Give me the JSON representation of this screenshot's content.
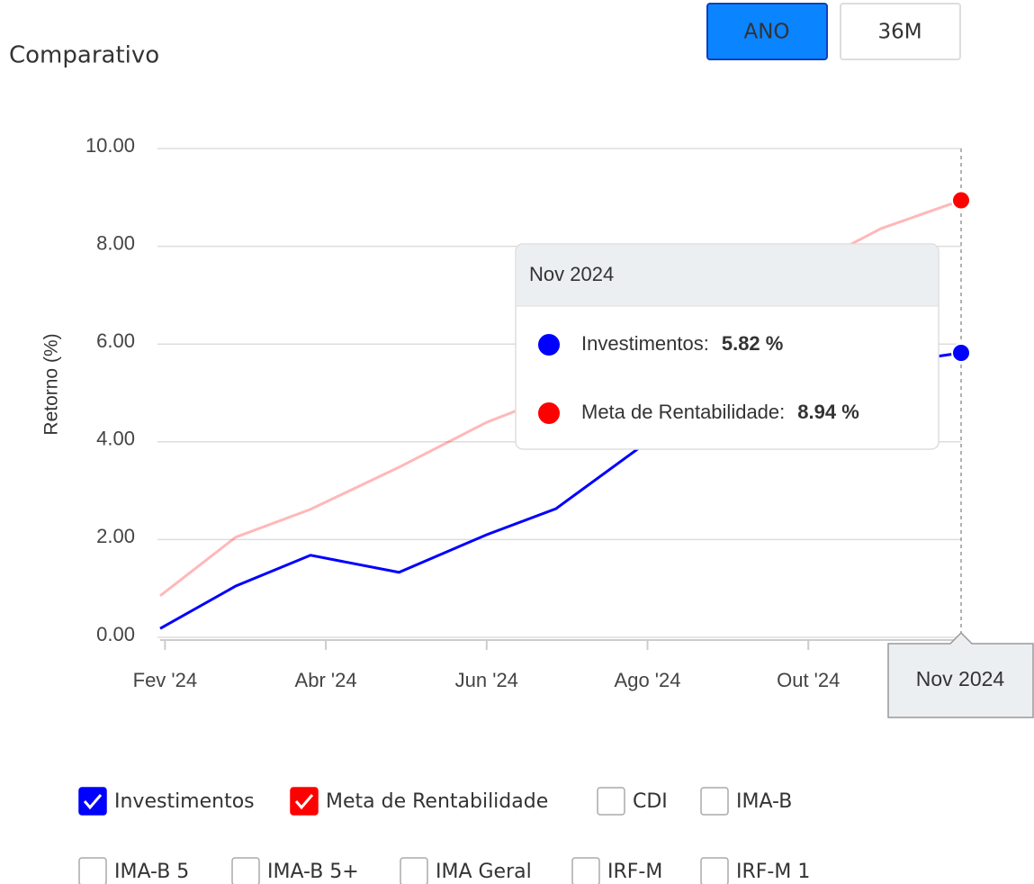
{
  "header": {
    "title": "Comparativo"
  },
  "buttons": [
    {
      "label": "ANO",
      "active": true
    },
    {
      "label": "36M",
      "active": false
    }
  ],
  "chart_data": {
    "type": "line",
    "y_label": "Retorno (%)",
    "x": [
      0.94,
      1.88,
      2.81,
      3.91,
      5.0,
      5.86,
      7.0,
      7.9,
      8.9,
      9.9,
      10.9
    ],
    "xlim": [
      0.94,
      10.9
    ],
    "xticks": [
      {
        "value": 1,
        "label": "Fev '24"
      },
      {
        "value": 3,
        "label": "Abr '24"
      },
      {
        "value": 5,
        "label": "Jun '24"
      },
      {
        "value": 7,
        "label": "Ago '24"
      },
      {
        "value": 9,
        "label": "Out '24"
      }
    ],
    "ylim": [
      0,
      10
    ],
    "yticks": [
      {
        "value": 0,
        "label": "0.00"
      },
      {
        "value": 2,
        "label": "2.00"
      },
      {
        "value": 4,
        "label": "4.00"
      },
      {
        "value": 6,
        "label": "6.00"
      },
      {
        "value": 8,
        "label": "8.00"
      },
      {
        "value": 10,
        "label": "10.00"
      }
    ],
    "grid": true,
    "series": [
      {
        "name": "Investimentos",
        "color": "#0000ff",
        "values": [
          0.18,
          1.05,
          1.68,
          1.33,
          2.1,
          2.63,
          4.0,
          5.34,
          5.45,
          5.58,
          5.82
        ]
      },
      {
        "name": "Meta de Rentabilidade",
        "color": "#ff0000",
        "values": [
          0.85,
          2.05,
          2.62,
          3.48,
          4.4,
          4.95,
          5.7,
          6.4,
          7.5,
          8.36,
          8.94
        ]
      }
    ]
  },
  "tooltip": {
    "title": "Nov 2024",
    "rows": [
      {
        "name": "Investimentos:",
        "value": "5.82 %"
      },
      {
        "name": "Meta de Rentabilidade:",
        "value": "8.94 %"
      }
    ],
    "x_label": "Nov 2024"
  },
  "checkboxes": [
    [
      {
        "label": "Investimentos",
        "checked": true
      },
      {
        "label": "Meta de Rentabilidade",
        "checked": true
      },
      {
        "label": "CDI",
        "checked": false
      },
      {
        "label": "IMA-B",
        "checked": false
      }
    ],
    [
      {
        "label": "IMA-B 5",
        "checked": false
      },
      {
        "label": "IMA-B 5+",
        "checked": false
      },
      {
        "label": "IMA Geral",
        "checked": false
      },
      {
        "label": "IRF-M",
        "checked": false
      },
      {
        "label": "IRF-M 1",
        "checked": false
      }
    ]
  ]
}
